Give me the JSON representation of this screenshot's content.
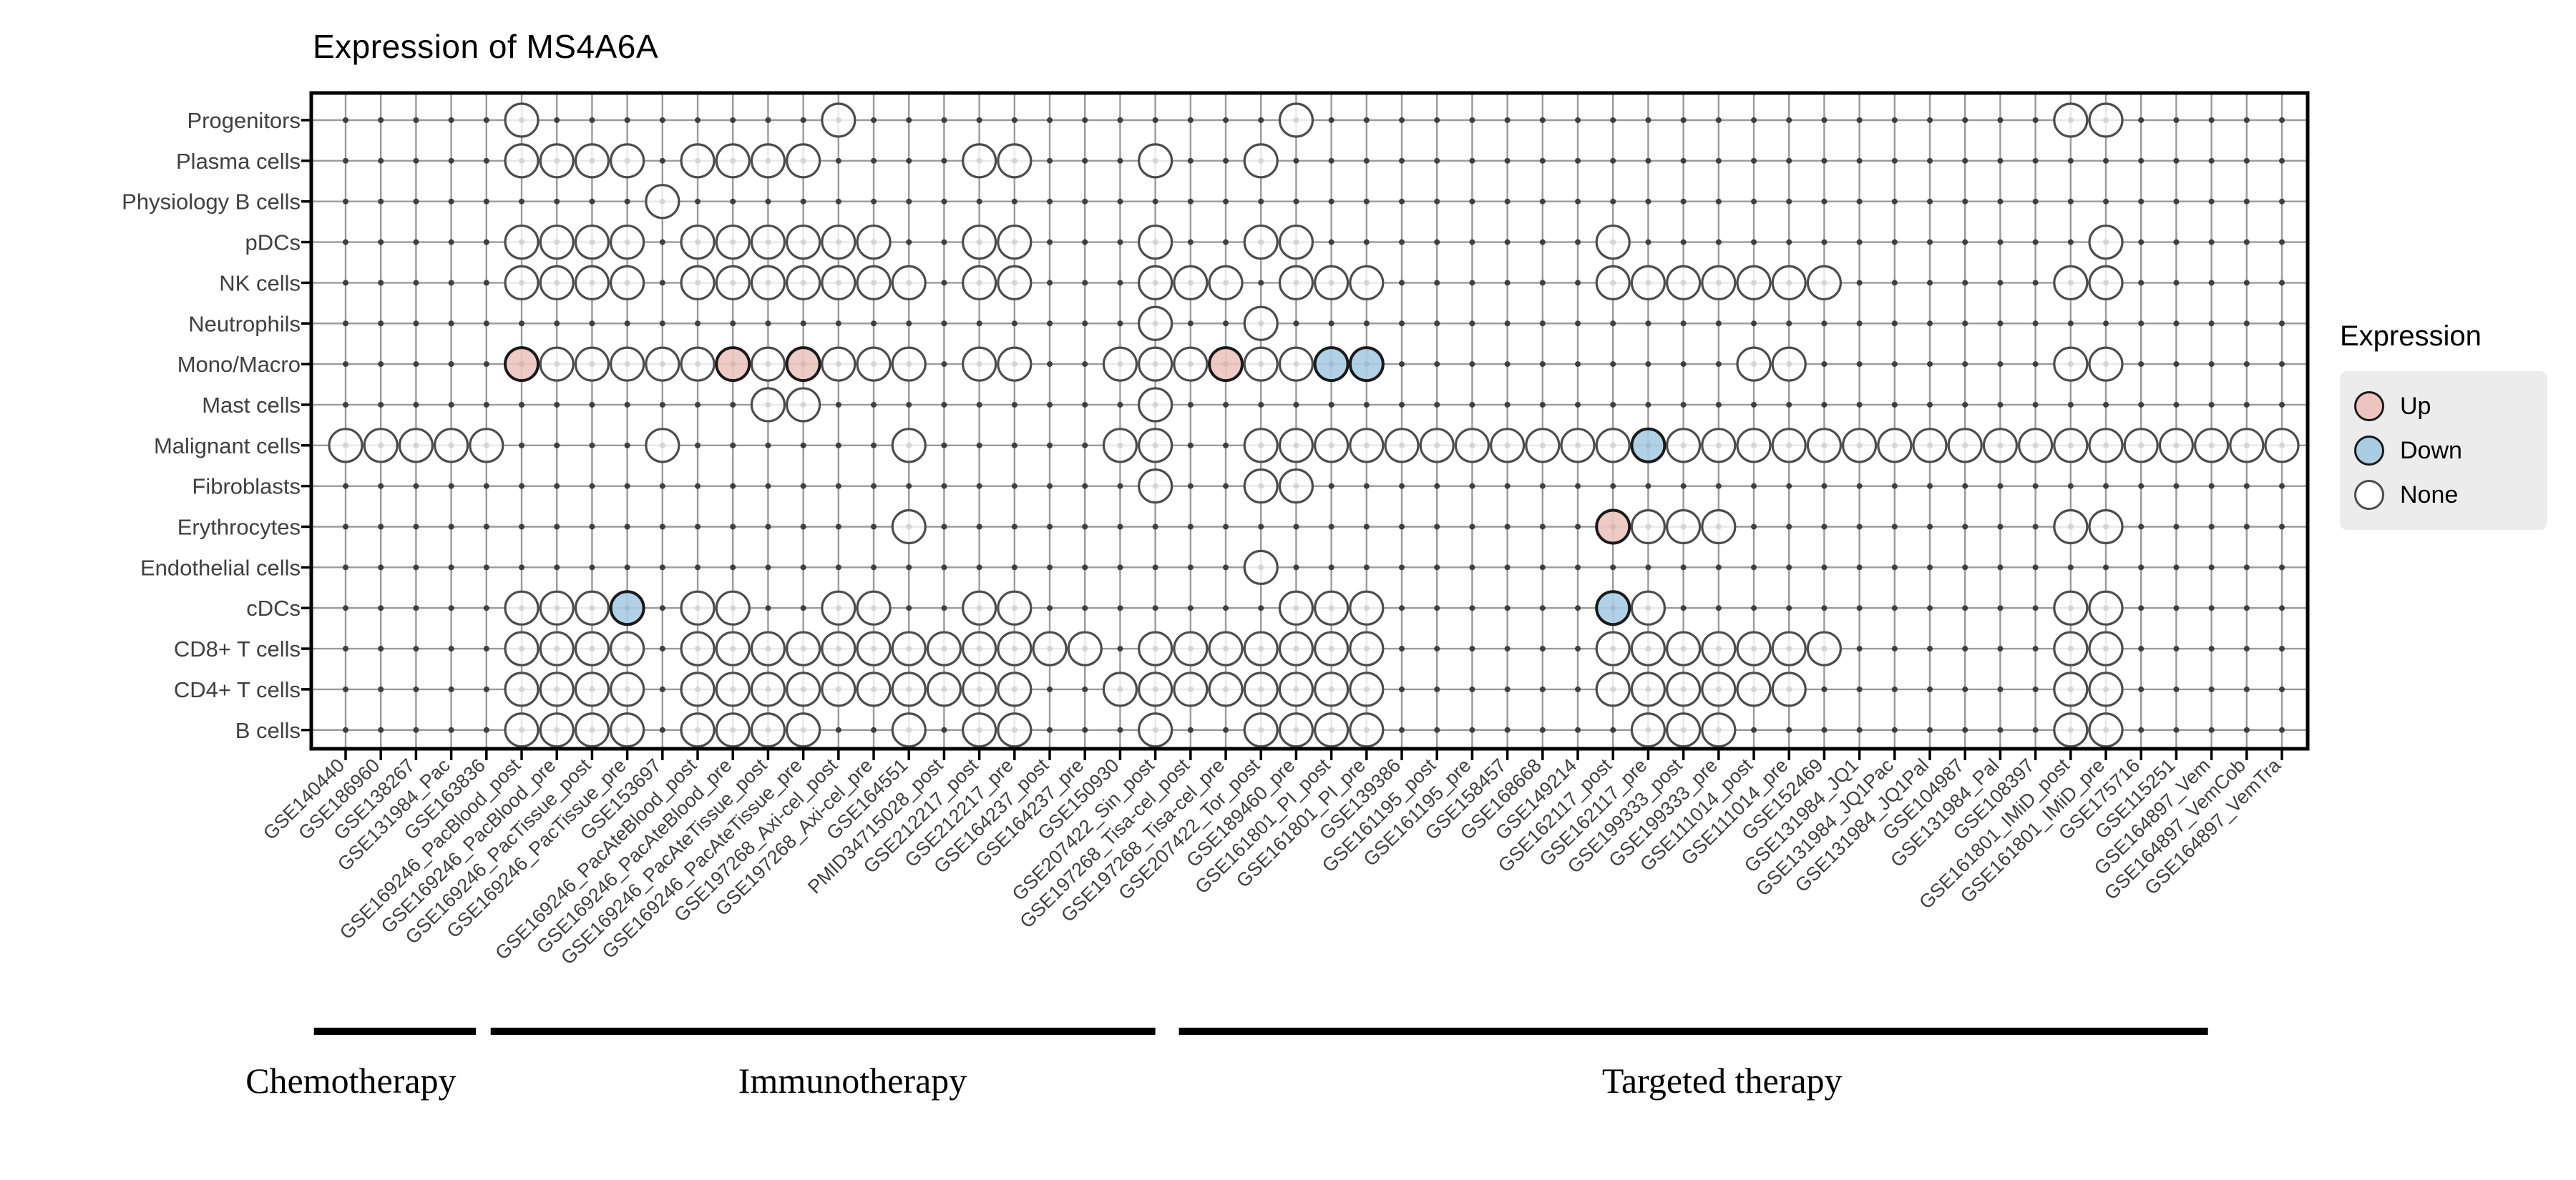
{
  "title": "Expression of MS4A6A",
  "legend": {
    "title": "Expression",
    "items": [
      {
        "label": "Up",
        "fill": "#ecc5c0",
        "stroke": "#1a1a1a"
      },
      {
        "label": "Down",
        "fill": "#a9cde3",
        "stroke": "#1a1a1a"
      },
      {
        "label": "None",
        "fill": "#ffffff",
        "stroke": "#4d4d4d"
      }
    ]
  },
  "chart_data": {
    "type": "dot-matrix",
    "title": "Expression of MS4A6A",
    "grid": true,
    "colors": {
      "up_fill": "#ecc5c0",
      "down_fill": "#a9cde3",
      "none_fill": "#ffffff",
      "colored_stroke": "#1a1a1a",
      "none_stroke": "#4d4d4d",
      "gridline": "#9b9b9b",
      "dot": "#3f3f3f",
      "panel_border": "#000000",
      "axis_text": "#404040"
    },
    "rows": [
      "Progenitors",
      "Plasma cells",
      "Physiology B cells",
      "pDCs",
      "NK cells",
      "Neutrophils",
      "Mono/Macro",
      "Mast cells",
      "Malignant cells",
      "Fibroblasts",
      "Erythrocytes",
      "Endothelial cells",
      "cDCs",
      "CD8+ T cells",
      "CD4+ T cells",
      "B cells"
    ],
    "columns": [
      "GSE140440",
      "GSE186960",
      "GSE138267",
      "GSE131984_Pac",
      "GSE163836",
      "GSE169246_PacBlood_post",
      "GSE169246_PacBlood_pre",
      "GSE169246_PacTissue_post",
      "GSE169246_PacTissue_pre",
      "GSE153697",
      "GSE169246_PacAteBlood_post",
      "GSE169246_PacAteBlood_pre",
      "GSE169246_PacAteTissue_post",
      "GSE169246_PacAteTissue_pre",
      "GSE197268_Axi-cel_post",
      "GSE197268_Axi-cel_pre",
      "GSE164551",
      "PMID34715028_post",
      "GSE212217_post",
      "GSE212217_pre",
      "GSE164237_post",
      "GSE164237_pre",
      "GSE150930",
      "GSE207422_Sin_post",
      "GSE197268_Tisa-cel_post",
      "GSE197268_Tisa-cel_pre",
      "GSE207422_Tor_post",
      "GSE189460_pre",
      "GSE161801_PI_post",
      "GSE161801_PI_pre",
      "GSE139386",
      "GSE161195_post",
      "GSE161195_pre",
      "GSE158457",
      "GSE168668",
      "GSE149214",
      "GSE162117_post",
      "GSE162117_pre",
      "GSE199333_post",
      "GSE199333_pre",
      "GSE111014_post",
      "GSE111014_pre",
      "GSE152469",
      "GSE131984_JQ1",
      "GSE131984_JQ1Pac",
      "GSE131984_JQ1Pal",
      "GSE104987",
      "GSE131984_Pal",
      "GSE108397",
      "GSE161801_IMiD_post",
      "GSE161801_IMiD_pre",
      "GSE175716",
      "GSE115251",
      "GSE164897_Vem",
      "GSE164897_VemCob",
      "GSE164897_VemTra"
    ],
    "groups": [
      {
        "label": "Chemotherapy",
        "start": 0.1,
        "end": 4.7,
        "label_center_col": 1.15
      },
      {
        "label": "Immunotherapy",
        "start": 5.12,
        "end": 24.0,
        "label_center_col": 15.4
      },
      {
        "label": "Targeted therapy",
        "start": 24.67,
        "end": 53.9,
        "label_center_col": 40.1
      }
    ],
    "points": [
      {
        "row": "Progenitors",
        "none": [
          6,
          15,
          28,
          50,
          51
        ],
        "up": [],
        "down": []
      },
      {
        "row": "Plasma cells",
        "none": [
          6,
          7,
          8,
          9,
          11,
          12,
          13,
          14,
          19,
          20,
          24,
          27
        ],
        "up": [],
        "down": []
      },
      {
        "row": "Physiology B cells",
        "none": [
          10
        ],
        "up": [],
        "down": []
      },
      {
        "row": "pDCs",
        "none": [
          6,
          7,
          8,
          9,
          11,
          12,
          13,
          14,
          15,
          16,
          19,
          20,
          24,
          27,
          28,
          37,
          51
        ],
        "up": [],
        "down": []
      },
      {
        "row": "NK cells",
        "none": [
          6,
          7,
          8,
          9,
          11,
          12,
          13,
          14,
          15,
          16,
          17,
          19,
          20,
          24,
          25,
          26,
          28,
          29,
          30,
          37,
          38,
          39,
          40,
          41,
          42,
          43,
          50,
          51
        ],
        "up": [],
        "down": []
      },
      {
        "row": "Neutrophils",
        "none": [
          24,
          27
        ],
        "up": [],
        "down": []
      },
      {
        "row": "Mono/Macro",
        "none": [
          7,
          8,
          9,
          10,
          11,
          13,
          15,
          16,
          17,
          19,
          20,
          23,
          24,
          25,
          27,
          28,
          41,
          42,
          50,
          51
        ],
        "up": [
          6,
          12,
          14,
          26
        ],
        "down": [
          29,
          30
        ]
      },
      {
        "row": "Mast cells",
        "none": [
          13,
          14,
          24
        ],
        "up": [],
        "down": []
      },
      {
        "row": "Malignant cells",
        "none": [
          1,
          2,
          3,
          4,
          5,
          10,
          17,
          23,
          24,
          27,
          28,
          29,
          30,
          31,
          32,
          33,
          34,
          35,
          36,
          37,
          39,
          40,
          41,
          42,
          43,
          44,
          45,
          46,
          47,
          48,
          49,
          50,
          51,
          52,
          53,
          54,
          55,
          56
        ],
        "up": [],
        "down": [
          38
        ]
      },
      {
        "row": "Fibroblasts",
        "none": [
          24,
          27,
          28
        ],
        "up": [],
        "down": []
      },
      {
        "row": "Erythrocytes",
        "none": [
          17,
          38,
          39,
          40,
          50,
          51
        ],
        "up": [
          37
        ],
        "down": []
      },
      {
        "row": "Endothelial cells",
        "none": [
          27
        ],
        "up": [],
        "down": []
      },
      {
        "row": "cDCs",
        "none": [
          6,
          7,
          8,
          11,
          12,
          15,
          16,
          19,
          20,
          28,
          29,
          30,
          38,
          50,
          51
        ],
        "up": [],
        "down": [
          9,
          37
        ]
      },
      {
        "row": "CD8+ T cells",
        "none": [
          6,
          7,
          8,
          9,
          11,
          12,
          13,
          14,
          15,
          16,
          17,
          18,
          19,
          20,
          21,
          22,
          24,
          25,
          26,
          27,
          28,
          29,
          30,
          37,
          38,
          39,
          40,
          41,
          42,
          43,
          50,
          51
        ],
        "up": [],
        "down": []
      },
      {
        "row": "CD4+ T cells",
        "none": [
          6,
          7,
          8,
          9,
          11,
          12,
          13,
          14,
          15,
          16,
          17,
          18,
          19,
          20,
          23,
          24,
          25,
          26,
          27,
          28,
          29,
          30,
          37,
          38,
          39,
          40,
          41,
          42,
          50,
          51
        ],
        "up": [],
        "down": []
      },
      {
        "row": "B cells",
        "none": [
          6,
          7,
          8,
          9,
          11,
          12,
          13,
          14,
          17,
          19,
          20,
          24,
          27,
          28,
          29,
          30,
          38,
          39,
          40,
          50,
          51
        ],
        "up": [],
        "down": []
      }
    ]
  }
}
